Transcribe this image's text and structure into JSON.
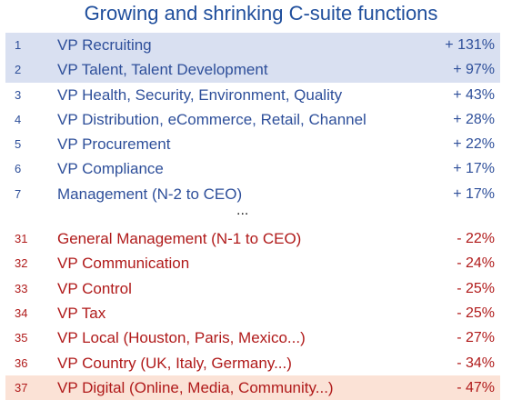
{
  "title": "Growing and shrinking C-suite functions",
  "growing": [
    {
      "rank": "1",
      "label": "VP Recruiting",
      "value": "+ 131%"
    },
    {
      "rank": "2",
      "label": "VP Talent, Talent Development",
      "value": "+ 97%"
    },
    {
      "rank": "3",
      "label": "VP Health, Security, Environment, Quality",
      "value": "+ 43%"
    },
    {
      "rank": "4",
      "label": "VP Distribution, eCommerce, Retail, Channel",
      "value": "+ 28%"
    },
    {
      "rank": "5",
      "label": "VP Procurement",
      "value": "+ 22%"
    },
    {
      "rank": "6",
      "label": "VP Compliance",
      "value": "+ 17%"
    },
    {
      "rank": "7",
      "label": "Management (N-2 to CEO)",
      "value": "+ 17%"
    }
  ],
  "ellipsis": "...",
  "shrinking": [
    {
      "rank": "31",
      "label": "General Management (N-1 to CEO)",
      "value": "- 22%"
    },
    {
      "rank": "32",
      "label": "VP Communication",
      "value": "- 24%"
    },
    {
      "rank": "33",
      "label": "VP Control",
      "value": "- 25%"
    },
    {
      "rank": "34",
      "label": "VP Tax",
      "value": "- 25%"
    },
    {
      "rank": "35",
      "label": "VP Local (Houston, Paris, Mexico...)",
      "value": "- 27%"
    },
    {
      "rank": "36",
      "label": "VP Country (UK, Italy, Germany...)",
      "value": "- 34%"
    },
    {
      "rank": "37",
      "label": "VP Digital (Online, Media, Community...)",
      "value": "- 47%"
    }
  ],
  "colors": {
    "growing": "#2E4F9A",
    "shrinking": "#B01A1A",
    "highlight_growing": "#D9E0F1",
    "highlight_shrinking": "#FBE2D6"
  }
}
